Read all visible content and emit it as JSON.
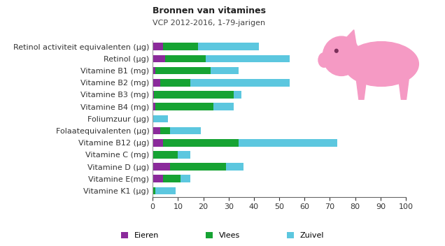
{
  "chart_data": {
    "type": "bar",
    "orientation": "horizontal",
    "stacked": true,
    "title": "Bronnen van vitamines",
    "subtitle": "VCP 2012-2016, 1-79-jarigen",
    "categories": [
      "Retinol activiteit equivalenten (µg)",
      "Retinol (µg)",
      "Vitamine B1 (mg)",
      "Vitamine B2 (mg)",
      "Vitamine B3 (mg)",
      "Vitamine B4 (mg)",
      "Foliumzuur (µg)",
      "Folaatequivalenten (µg)",
      "Vitamine B12 (µg)",
      "Vitamine C (mg)",
      "Vitamine D (µg)",
      "Vitamine E(mg)",
      "Vitamine K1 (µg)"
    ],
    "series": [
      {
        "name": "Eieren",
        "color": "#8b2a9b",
        "values": [
          4,
          5,
          1,
          3,
          0.5,
          1,
          0,
          3,
          4,
          0,
          7,
          4,
          0
        ]
      },
      {
        "name": "Vlees",
        "color": "#16a333",
        "values": [
          14,
          16,
          22,
          12,
          31.5,
          23,
          0,
          4,
          30,
          10,
          22,
          7,
          1
        ]
      },
      {
        "name": "Zuivel",
        "color": "#5cc7df",
        "values": [
          24,
          33,
          11,
          39,
          3,
          8,
          6,
          12,
          39,
          5,
          7,
          4,
          8
        ]
      }
    ],
    "xlim": [
      0,
      100
    ],
    "xticks": [
      0,
      10,
      20,
      30,
      40,
      50,
      60,
      70,
      80,
      90,
      100
    ],
    "grid": false,
    "legend": "lower center"
  }
}
